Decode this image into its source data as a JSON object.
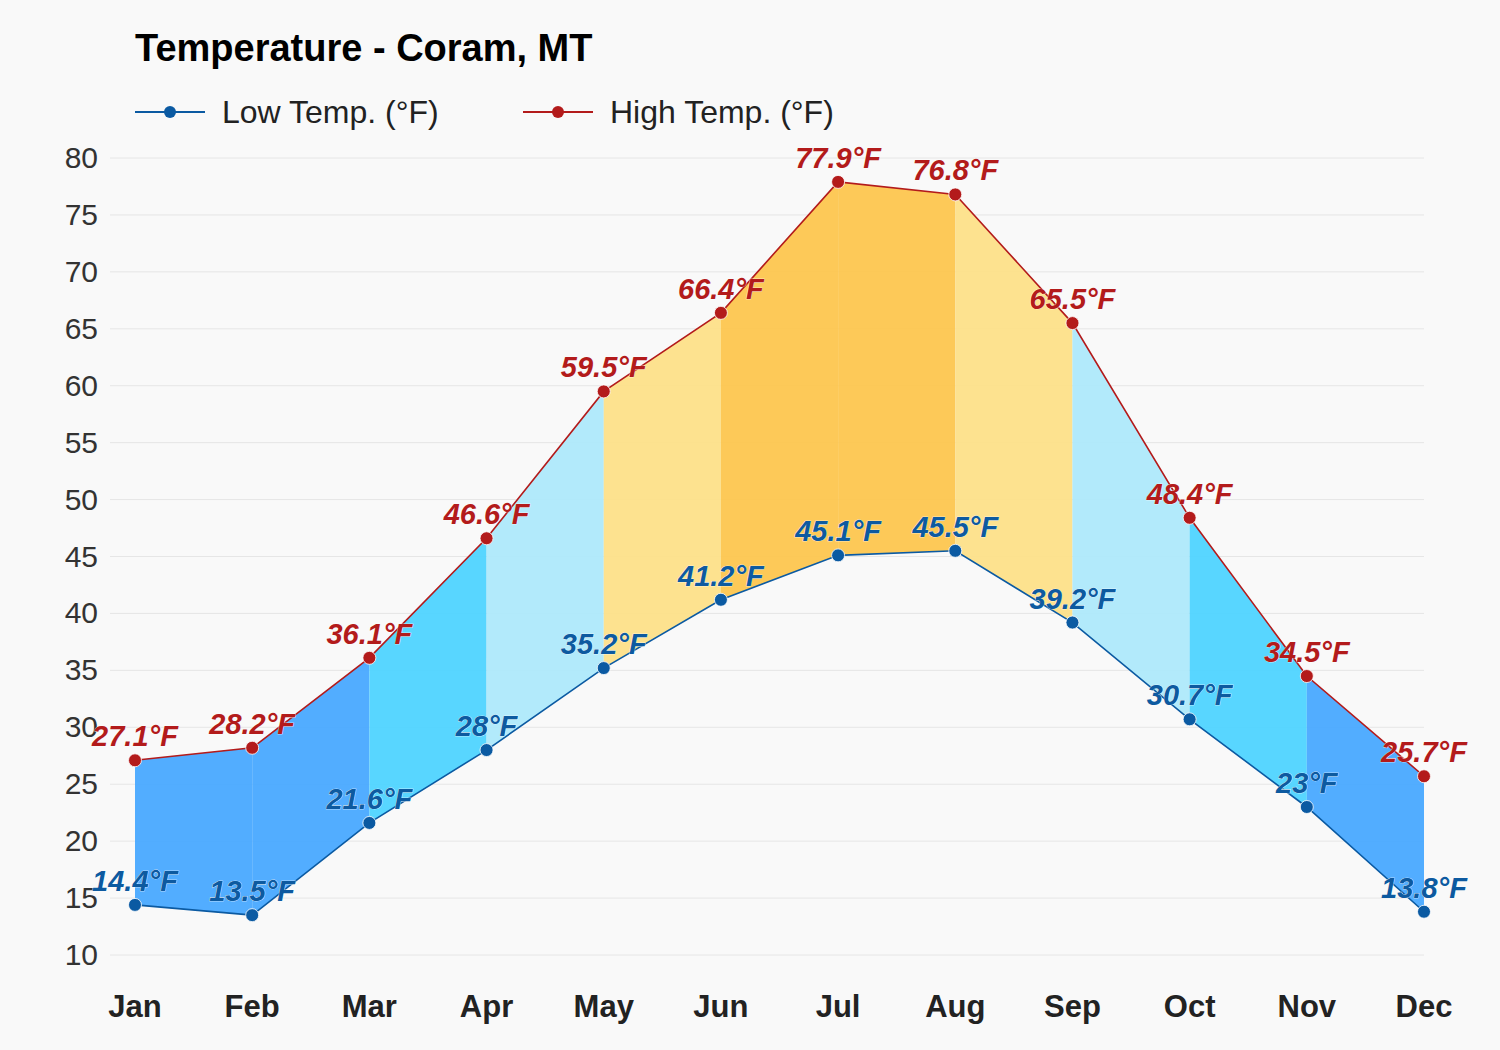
{
  "chart_data": {
    "type": "line",
    "title": "Temperature - Coram, MT",
    "categories": [
      "Jan",
      "Feb",
      "Mar",
      "Apr",
      "May",
      "Jun",
      "Jul",
      "Aug",
      "Sep",
      "Oct",
      "Nov",
      "Dec"
    ],
    "series": [
      {
        "name": "Low Temp. (°F)",
        "color": "#0b5aa2",
        "marker": "circle",
        "values": [
          14.4,
          13.5,
          21.6,
          28,
          35.2,
          41.2,
          45.1,
          45.5,
          39.2,
          30.7,
          23,
          13.8
        ],
        "value_labels": [
          "14.4°F",
          "13.5°F",
          "21.6°F",
          "28°F",
          "35.2°F",
          "41.2°F",
          "45.1°F",
          "45.5°F",
          "39.2°F",
          "30.7°F",
          "23°F",
          "13.8°F"
        ]
      },
      {
        "name": "High Temp. (°F)",
        "color": "#b31b1b",
        "marker": "circle",
        "values": [
          27.1,
          28.2,
          36.1,
          46.6,
          59.5,
          66.4,
          77.9,
          76.8,
          65.5,
          48.4,
          34.5,
          25.7
        ],
        "value_labels": [
          "27.1°F",
          "28.2°F",
          "36.1°F",
          "46.6°F",
          "59.5°F",
          "66.4°F",
          "77.9°F",
          "76.8°F",
          "65.5°F",
          "48.4°F",
          "34.5°F",
          "25.7°F"
        ]
      }
    ],
    "ylim": [
      10,
      80
    ],
    "yticks": [
      10,
      15,
      20,
      25,
      30,
      35,
      40,
      45,
      50,
      55,
      60,
      65,
      70,
      75,
      80
    ],
    "grid": true,
    "data_labels": true,
    "legend": "top-left"
  }
}
